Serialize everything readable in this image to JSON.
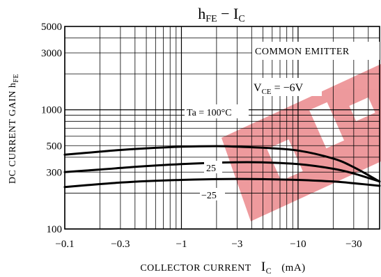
{
  "chart_data": {
    "type": "line",
    "title": "hFE − IC",
    "title_parts": {
      "main": "h",
      "main_sub": "FE",
      "sep": " − ",
      "var": "I",
      "var_sub": "C"
    },
    "ylabel": "DC CURRENT GAIN hFE",
    "ylabel_parts": {
      "text": "DC CURRENT GAIN h",
      "sub": "FE"
    },
    "xlabel": "COLLECTOR CURRENT IC (mA)",
    "xlabel_parts": {
      "text": "COLLECTOR CURRENT",
      "var": "I",
      "var_sub": "C",
      "unit": "(mA)"
    },
    "x_scale": "log",
    "y_scale": "log",
    "xlim": [
      -0.1,
      -50
    ],
    "ylim": [
      100,
      5000
    ],
    "x_ticks": [
      "−0.1",
      "−0.3",
      "−1",
      "−3",
      "−10",
      "−30"
    ],
    "x_tick_values": [
      -0.1,
      -0.3,
      -1,
      -3,
      -10,
      -30
    ],
    "y_ticks": [
      "100",
      "300",
      "500",
      "1000",
      "3000",
      "5000"
    ],
    "y_tick_values": [
      100,
      300,
      500,
      1000,
      3000,
      5000
    ],
    "grid": true,
    "annotations": {
      "common_emitter": "COMMON EMITTER",
      "vce_label": "V",
      "vce_sub": "CE",
      "vce_value": " = −6V"
    },
    "series": [
      {
        "name": "Ta = 100°C",
        "x": [
          -0.1,
          -0.2,
          -0.3,
          -0.5,
          -1,
          -2,
          -3,
          -5,
          -10,
          -20,
          -30,
          -50
        ],
        "y": [
          420,
          445,
          460,
          475,
          490,
          495,
          490,
          480,
          455,
          390,
          330,
          250
        ]
      },
      {
        "name": "25",
        "x": [
          -0.1,
          -0.2,
          -0.3,
          -0.5,
          -1,
          -2,
          -3,
          -5,
          -10,
          -20,
          -30,
          -50
        ],
        "y": [
          300,
          315,
          325,
          337,
          350,
          360,
          363,
          362,
          350,
          320,
          292,
          250
        ]
      },
      {
        "name": "−25",
        "x": [
          -0.1,
          -0.2,
          -0.3,
          -0.5,
          -1,
          -2,
          -3,
          -5,
          -10,
          -20,
          -30,
          -50
        ],
        "y": [
          225,
          238,
          245,
          252,
          258,
          262,
          263,
          262,
          258,
          250,
          242,
          230
        ]
      }
    ],
    "colors": {
      "curve": "#000000",
      "grid": "#000000",
      "watermark": "#e24a4f"
    }
  }
}
